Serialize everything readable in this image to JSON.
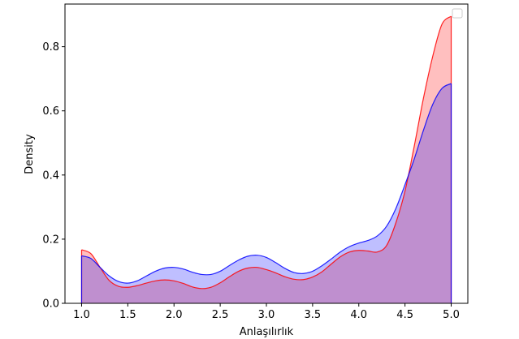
{
  "chart_data": {
    "type": "area",
    "title": "",
    "xlabel": "Anlaşılırlık",
    "ylabel": "Density",
    "xlim": [
      0.82,
      5.18
    ],
    "ylim": [
      0.0,
      0.933
    ],
    "x_ticks": [
      "1.0",
      "1.5",
      "2.0",
      "2.5",
      "3.0",
      "3.5",
      "4.0",
      "4.5",
      "5.0"
    ],
    "y_ticks": [
      "0.0",
      "0.2",
      "0.4",
      "0.6",
      "0.8"
    ],
    "grid": false,
    "legend": {
      "position": "top-right",
      "entries": []
    },
    "series": [
      {
        "color": "#ff0000",
        "x": [
          1.0,
          1.1,
          1.2,
          1.3,
          1.4,
          1.5,
          1.6,
          1.7,
          1.8,
          1.9,
          2.0,
          2.1,
          2.2,
          2.3,
          2.4,
          2.5,
          2.6,
          2.7,
          2.8,
          2.9,
          3.0,
          3.1,
          3.2,
          3.3,
          3.4,
          3.5,
          3.6,
          3.7,
          3.8,
          3.9,
          4.0,
          4.1,
          4.2,
          4.3,
          4.4,
          4.5,
          4.6,
          4.7,
          4.8,
          4.9,
          5.0
        ],
        "values": [
          0.167,
          0.155,
          0.112,
          0.071,
          0.053,
          0.05,
          0.055,
          0.063,
          0.07,
          0.073,
          0.07,
          0.062,
          0.051,
          0.046,
          0.05,
          0.064,
          0.083,
          0.1,
          0.11,
          0.112,
          0.105,
          0.095,
          0.083,
          0.075,
          0.074,
          0.082,
          0.098,
          0.122,
          0.145,
          0.16,
          0.165,
          0.163,
          0.16,
          0.18,
          0.25,
          0.35,
          0.49,
          0.64,
          0.77,
          0.87,
          0.895
        ]
      },
      {
        "color": "#0000ff",
        "x": [
          1.0,
          1.1,
          1.2,
          1.3,
          1.4,
          1.5,
          1.6,
          1.7,
          1.8,
          1.9,
          2.0,
          2.1,
          2.2,
          2.3,
          2.4,
          2.5,
          2.6,
          2.7,
          2.8,
          2.9,
          3.0,
          3.1,
          3.2,
          3.3,
          3.4,
          3.5,
          3.6,
          3.7,
          3.8,
          3.9,
          4.0,
          4.1,
          4.2,
          4.3,
          4.4,
          4.5,
          4.6,
          4.7,
          4.8,
          4.9,
          5.0
        ],
        "values": [
          0.148,
          0.14,
          0.112,
          0.085,
          0.068,
          0.063,
          0.07,
          0.085,
          0.1,
          0.11,
          0.112,
          0.107,
          0.097,
          0.09,
          0.09,
          0.1,
          0.118,
          0.135,
          0.147,
          0.15,
          0.143,
          0.127,
          0.109,
          0.096,
          0.093,
          0.1,
          0.117,
          0.138,
          0.16,
          0.177,
          0.188,
          0.196,
          0.21,
          0.24,
          0.295,
          0.37,
          0.45,
          0.54,
          0.62,
          0.67,
          0.685
        ]
      }
    ]
  }
}
